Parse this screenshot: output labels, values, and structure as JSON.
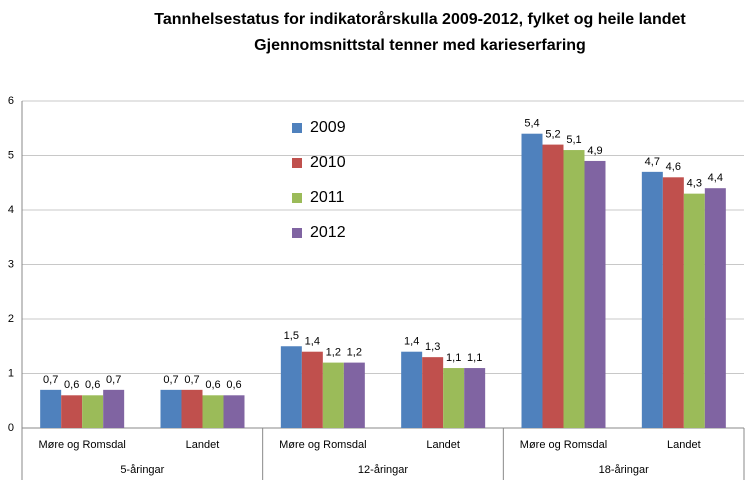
{
  "chart_data": {
    "type": "bar",
    "title": "Tannhelsestatus  for indikatorårskulla  2009-2012, fylket og heile landet",
    "subtitle": "Gjennomsnittstal  tenner med karieserfaring",
    "category_groups": [
      {
        "name": "5-åringar",
        "categories": [
          "Møre og Romsdal",
          "Landet"
        ]
      },
      {
        "name": "12-åringar",
        "categories": [
          "Møre og Romsdal",
          "Landet"
        ]
      },
      {
        "name": "18-åringar",
        "categories": [
          "Møre og Romsdal",
          "Landet"
        ]
      }
    ],
    "series": [
      {
        "name": "2009",
        "color": "#4f81bd",
        "values": [
          0.7,
          0.7,
          1.5,
          1.4,
          5.4,
          4.7
        ],
        "value_labels": [
          "0,7",
          "0,7",
          "1,5",
          "1,4",
          "5,4",
          "4,7"
        ]
      },
      {
        "name": "2010",
        "color": "#c0504d",
        "values": [
          0.6,
          0.7,
          1.4,
          1.3,
          5.2,
          4.6
        ],
        "value_labels": [
          "0,6",
          "0,7",
          "1,4",
          "1,3",
          "5,2",
          "4,6"
        ]
      },
      {
        "name": "2011",
        "color": "#9bbb59",
        "values": [
          0.6,
          0.6,
          1.2,
          1.1,
          5.1,
          4.3
        ],
        "value_labels": [
          "0,6",
          "0,6",
          "1,2",
          "1,1",
          "5,1",
          "4,3"
        ]
      },
      {
        "name": "2012",
        "color": "#8064a2",
        "values": [
          0.7,
          0.6,
          1.2,
          1.1,
          4.9,
          4.4
        ],
        "value_labels": [
          "0,7",
          "0,6",
          "1,2",
          "1,1",
          "4,9",
          "4,4"
        ]
      }
    ],
    "ylim": [
      0,
      6
    ],
    "yticks": [
      0,
      1,
      2,
      3,
      4,
      5,
      6
    ],
    "grid": true,
    "legend": "top-left"
  }
}
